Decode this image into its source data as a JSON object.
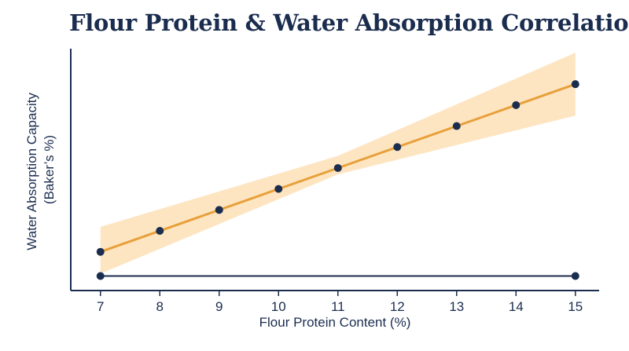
{
  "chart_data": {
    "type": "scatter",
    "title": "Flour Protein & Water Absorption Correlation",
    "xlabel": "Flour Protein Content (%)",
    "ylabel_lines": [
      "Water Absorption Capacity",
      "(Baker’s %)"
    ],
    "xlim": [
      6.5,
      15.4
    ],
    "ylim": [
      48,
      78
    ],
    "x_ticks": [
      7,
      8,
      9,
      10,
      11,
      12,
      13,
      14,
      15
    ],
    "y_ticks_shown": false,
    "grid": false,
    "series": [
      {
        "values": [
          {
            "x": 7,
            "y": 52.8
          },
          {
            "x": 8,
            "y": 55.4
          },
          {
            "x": 9,
            "y": 58.0
          },
          {
            "x": 10,
            "y": 60.6
          },
          {
            "x": 11,
            "y": 63.2
          },
          {
            "x": 12,
            "y": 65.8
          },
          {
            "x": 13,
            "y": 68.4
          },
          {
            "x": 14,
            "y": 71.0
          },
          {
            "x": 15,
            "y": 73.6
          }
        ]
      }
    ],
    "baseline_points": [
      {
        "x": 7,
        "y": 49.8
      },
      {
        "x": 15,
        "y": 49.8
      }
    ],
    "trendline": {
      "x": [
        7,
        15
      ],
      "y": [
        52.8,
        73.6
      ]
    },
    "confidence_band": {
      "x": [
        7,
        11,
        15
      ],
      "lower": [
        50.1,
        62.4,
        69.7
      ],
      "upper": [
        55.9,
        64.7,
        77.5
      ]
    },
    "colors": {
      "points": "#1b2d4f",
      "trendline": "#e8a03a",
      "band": "#fcdcae",
      "axis": "#1b2d4f",
      "text": "#1b2d4f"
    }
  }
}
